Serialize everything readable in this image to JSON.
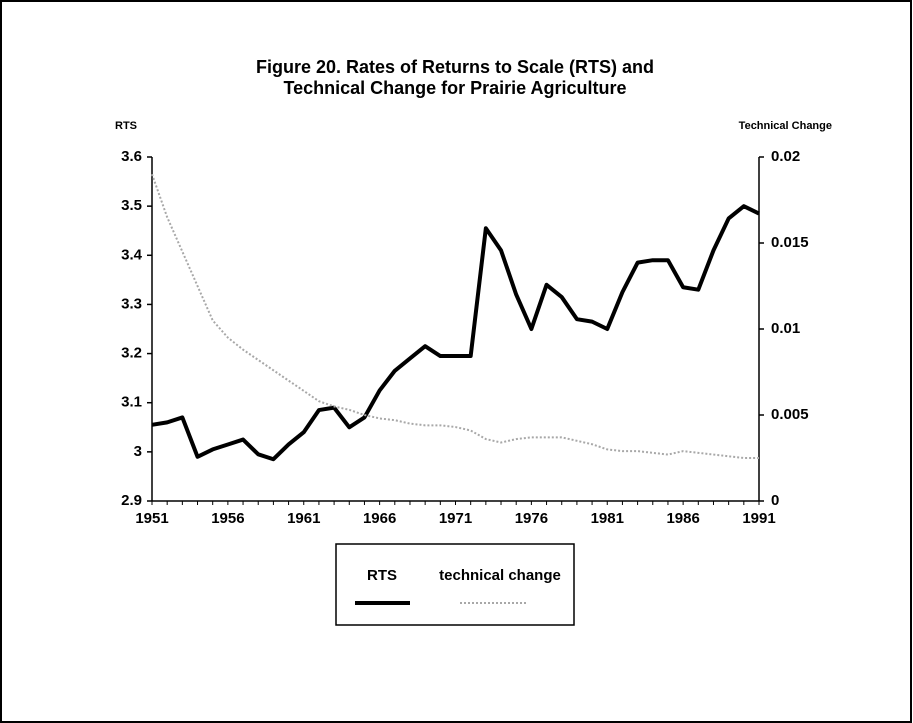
{
  "chart_data": {
    "type": "line",
    "title": [
      "Figure 20. Rates of Returns to Scale (RTS) and",
      "Technical Change for Prairie Agriculture"
    ],
    "y_label": "RTS",
    "y2_label": "Technical Change",
    "x": [
      1951,
      1952,
      1953,
      1954,
      1955,
      1956,
      1957,
      1958,
      1959,
      1960,
      1961,
      1962,
      1963,
      1964,
      1965,
      1966,
      1967,
      1968,
      1969,
      1970,
      1971,
      1972,
      1973,
      1974,
      1975,
      1976,
      1977,
      1978,
      1979,
      1980,
      1981,
      1982,
      1983,
      1984,
      1985,
      1986,
      1987,
      1988,
      1989,
      1990,
      1991
    ],
    "xlim": [
      1951,
      1991
    ],
    "xticks": [
      1951,
      1956,
      1961,
      1966,
      1971,
      1976,
      1981,
      1986,
      1991
    ],
    "ylim": [
      2.9,
      3.6
    ],
    "yticks": [
      2.9,
      3,
      3.1,
      3.2,
      3.3,
      3.4,
      3.5,
      3.6
    ],
    "y2lim": [
      0,
      0.02
    ],
    "y2ticks": [
      0,
      0.005,
      0.01,
      0.015,
      0.02
    ],
    "legend": "bottom",
    "series": [
      {
        "name": "RTS",
        "color": "#000000",
        "style": "solid",
        "values": [
          3.055,
          3.06,
          3.07,
          2.99,
          3.005,
          3.015,
          3.025,
          2.995,
          2.985,
          3.015,
          3.04,
          3.085,
          3.09,
          3.05,
          3.07,
          3.125,
          3.165,
          3.19,
          3.215,
          3.195,
          3.195,
          3.195,
          3.455,
          3.41,
          3.32,
          3.25,
          3.34,
          3.315,
          3.27,
          3.265,
          3.25,
          3.325,
          3.385,
          3.39,
          3.39,
          3.335,
          3.33,
          3.41,
          3.475,
          3.5,
          3.485
        ]
      },
      {
        "name": "technical change",
        "color": "#a8a8a8",
        "style": "dotted",
        "axis": "y2",
        "values": [
          0.019,
          0.0165,
          0.0145,
          0.0125,
          0.0105,
          0.0095,
          0.0088,
          0.0082,
          0.0076,
          0.007,
          0.0064,
          0.0058,
          0.0055,
          0.0053,
          0.005,
          0.0048,
          0.0047,
          0.0045,
          0.0044,
          0.0044,
          0.0043,
          0.0041,
          0.0036,
          0.0034,
          0.0036,
          0.0037,
          0.0037,
          0.0037,
          0.0035,
          0.0033,
          0.003,
          0.0029,
          0.0029,
          0.0028,
          0.0027,
          0.0029,
          0.0028,
          0.0027,
          0.0026,
          0.0025,
          0.0025
        ]
      }
    ]
  }
}
